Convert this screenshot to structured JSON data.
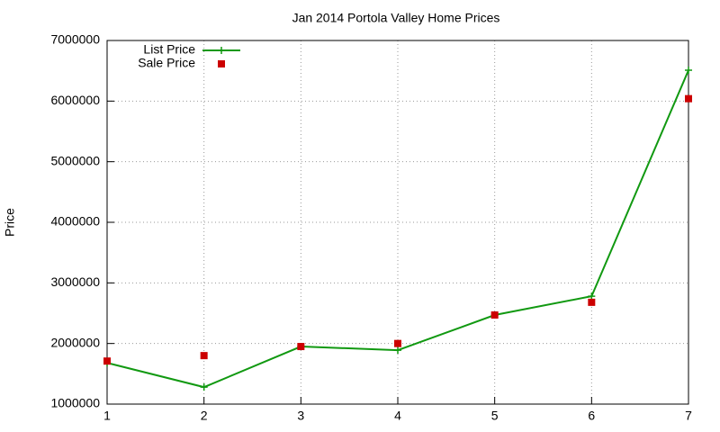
{
  "chart_data": {
    "type": "line",
    "title": "Jan 2014 Portola Valley Home Prices",
    "y_label": "Price",
    "x": [
      1,
      2,
      3,
      4,
      5,
      6,
      7
    ],
    "series": [
      {
        "name": "List Price",
        "color": "#119911",
        "style": "linespoints",
        "marker": "plus",
        "values": [
          1680000,
          1280000,
          1950000,
          1890000,
          2470000,
          2780000,
          6510000
        ]
      },
      {
        "name": "Sale Price",
        "color": "#cc0000",
        "style": "points",
        "marker": "square",
        "values": [
          1710000,
          1800000,
          1950000,
          2000000,
          2470000,
          2680000,
          6040000
        ]
      }
    ],
    "xlim": [
      1,
      7
    ],
    "xticks": [
      1,
      2,
      3,
      4,
      5,
      6,
      7
    ],
    "ylim": [
      1000000,
      7000000
    ],
    "yticks": [
      1000000,
      2000000,
      3000000,
      4000000,
      5000000,
      6000000,
      7000000
    ],
    "grid": true,
    "legend": "top-left"
  }
}
